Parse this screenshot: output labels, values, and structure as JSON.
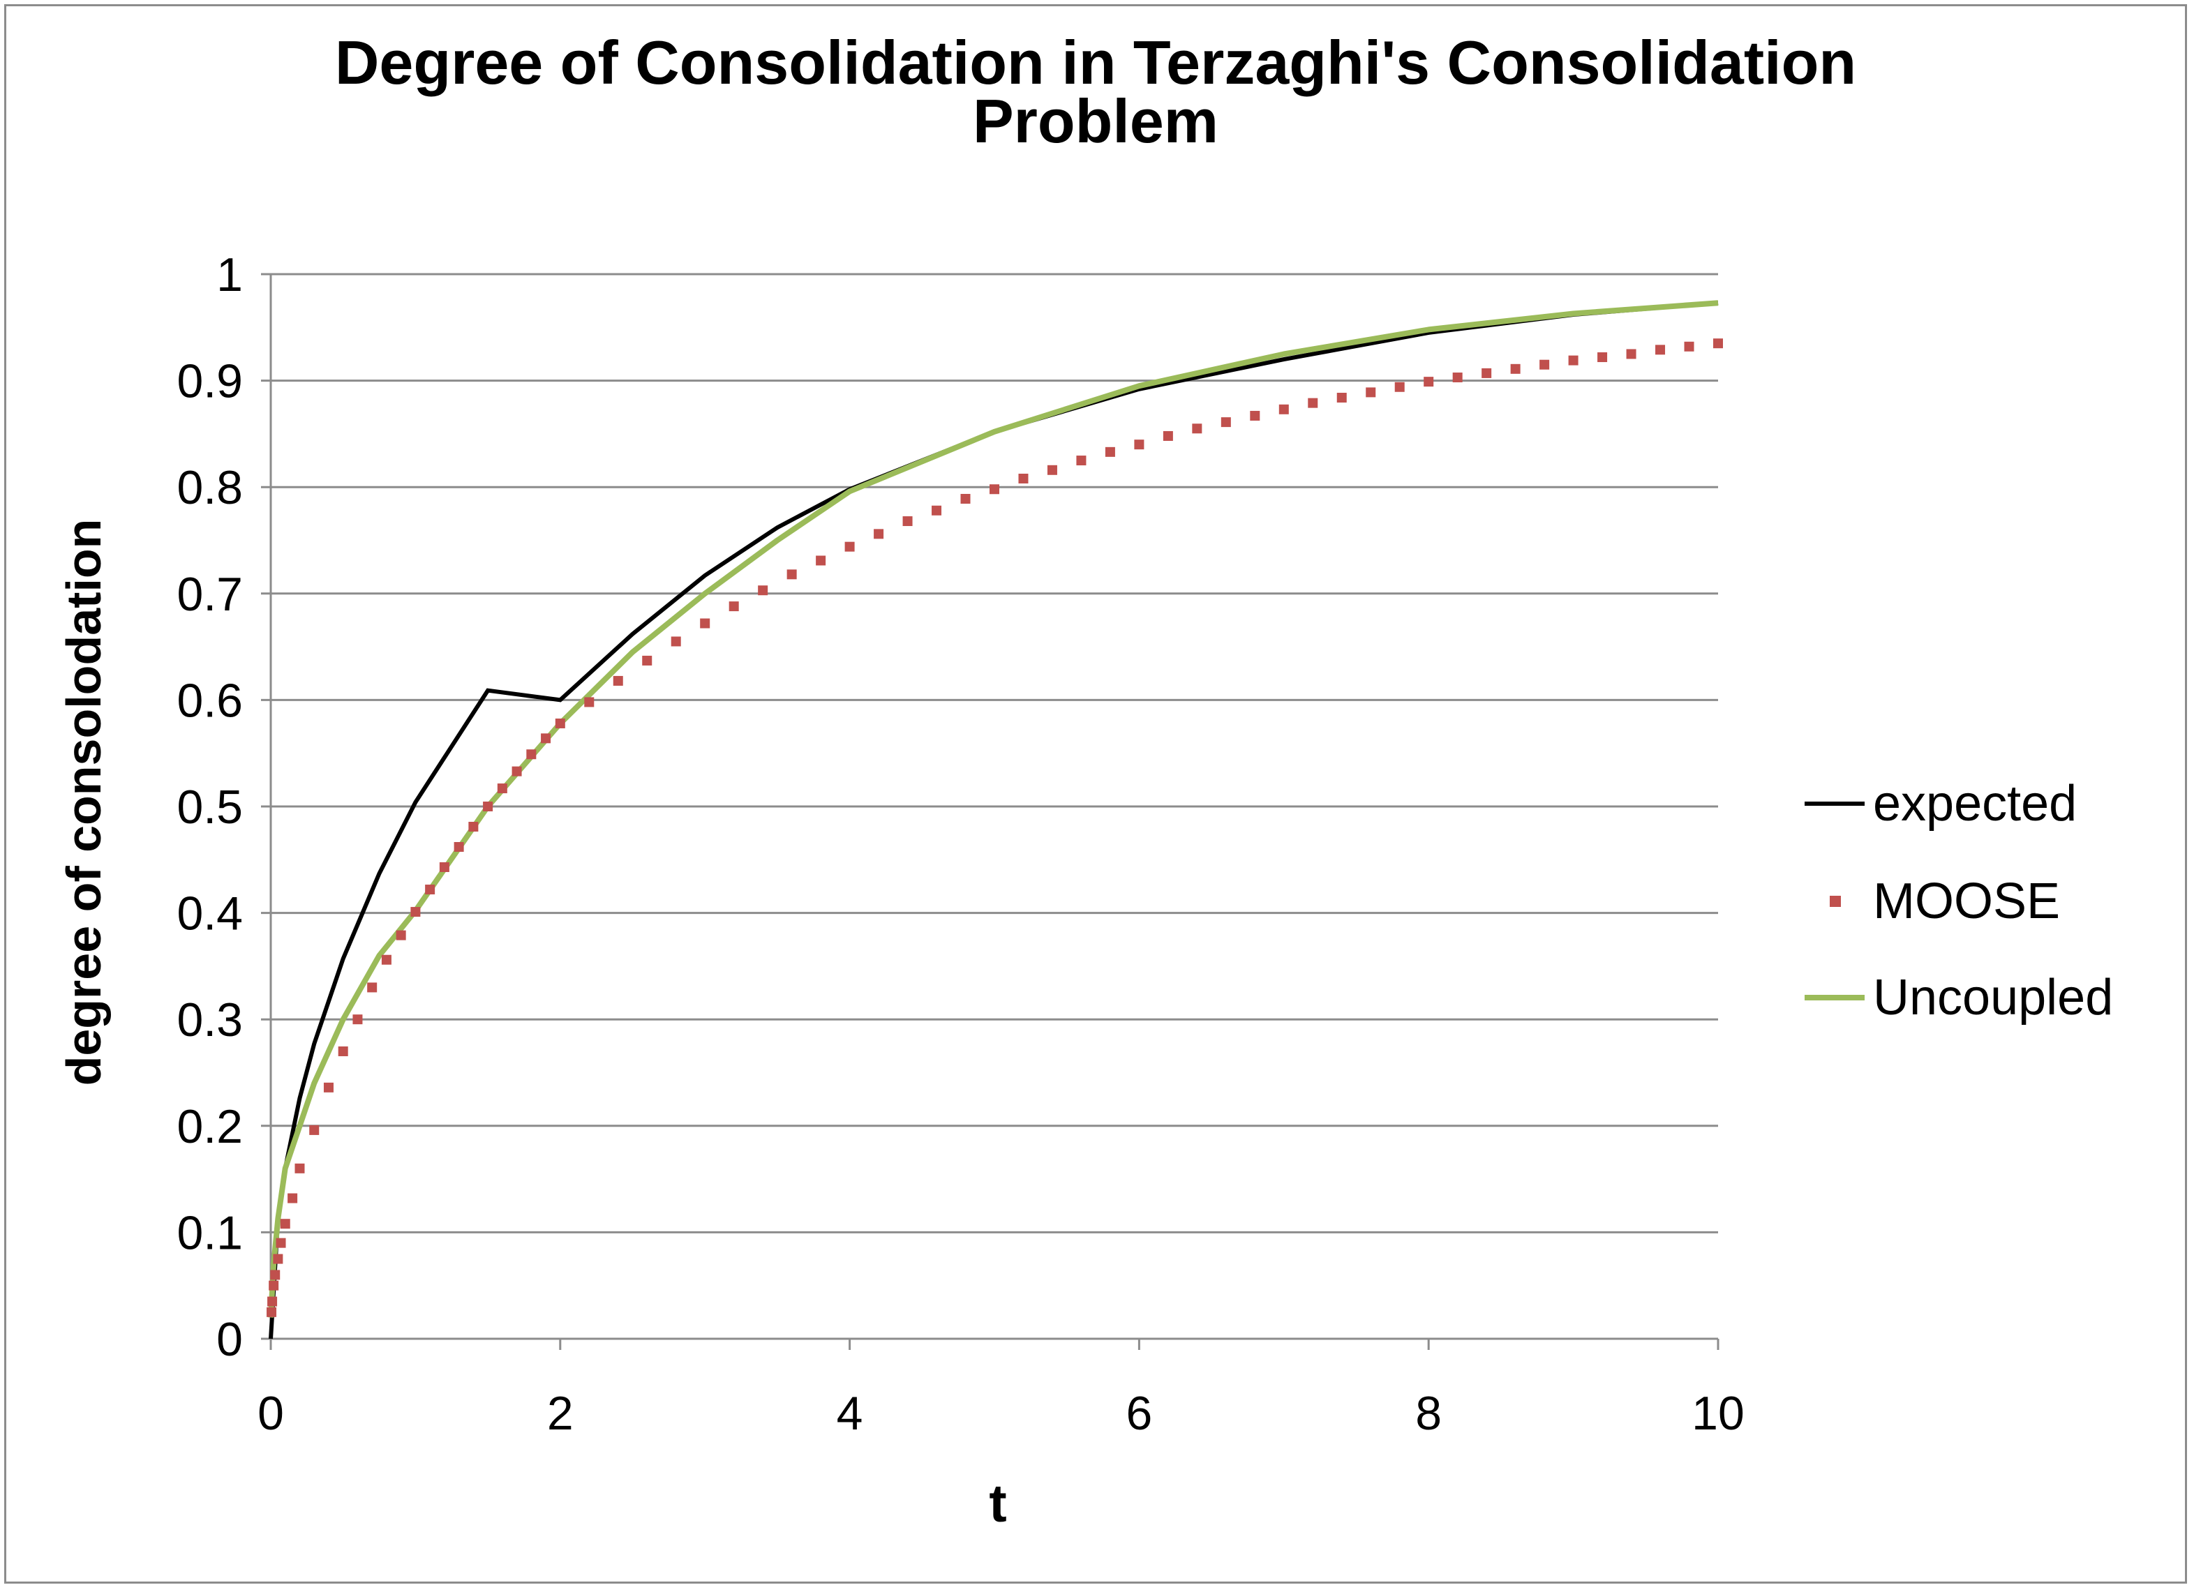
{
  "chart_data": {
    "type": "line",
    "title": "Degree of Consolidation in Terzaghi's Consolidation Problem",
    "title_lines": [
      "Degree of Consolidation in Terzaghi's Consolidation",
      "Problem"
    ],
    "xlabel": "t",
    "ylabel": "degree of consolodation",
    "xlim": [
      0,
      10
    ],
    "ylim": [
      0,
      1
    ],
    "x_ticks": [
      "0",
      "2",
      "4",
      "6",
      "8",
      "10"
    ],
    "y_ticks": [
      "0",
      "0.1",
      "0.2",
      "0.3",
      "0.4",
      "0.5",
      "0.6",
      "0.7",
      "0.8",
      "0.9",
      "1"
    ],
    "grid": "horizontal",
    "legend_position": "right",
    "series": [
      {
        "name": "expected",
        "style": "line",
        "color": "#000000",
        "x": [
          0,
          0.05,
          0.1,
          0.2,
          0.3,
          0.5,
          0.75,
          1,
          1.5,
          2,
          2.5,
          3,
          3.5,
          4,
          5,
          6,
          7,
          8,
          9,
          10
        ],
        "y": [
          0,
          0.113,
          0.16,
          0.226,
          0.277,
          0.357,
          0.437,
          0.504,
          0.609,
          0.6,
          0.662,
          0.717,
          0.762,
          0.798,
          0.852,
          0.892,
          0.92,
          0.945,
          0.962,
          0.973
        ]
      },
      {
        "name": "MOOSE",
        "style": "markers",
        "color": "#c0504d",
        "x": [
          0.005,
          0.01,
          0.02,
          0.03,
          0.05,
          0.07,
          0.1,
          0.15,
          0.2,
          0.3,
          0.4,
          0.5,
          0.6,
          0.7,
          0.8,
          0.9,
          1.0,
          1.1,
          1.2,
          1.3,
          1.4,
          1.5,
          1.6,
          1.7,
          1.8,
          1.9,
          2.0,
          2.2,
          2.4,
          2.6,
          2.8,
          3.0,
          3.2,
          3.4,
          3.6,
          3.8,
          4.0,
          4.2,
          4.4,
          4.6,
          4.8,
          5.0,
          5.2,
          5.4,
          5.6,
          5.8,
          6.0,
          6.2,
          6.4,
          6.6,
          6.8,
          7.0,
          7.2,
          7.4,
          7.6,
          7.8,
          8.0,
          8.2,
          8.4,
          8.6,
          8.8,
          9.0,
          9.2,
          9.4,
          9.6,
          9.8,
          10.0
        ],
        "y": [
          0.025,
          0.035,
          0.05,
          0.06,
          0.075,
          0.09,
          0.108,
          0.132,
          0.16,
          0.196,
          0.236,
          0.27,
          0.3,
          0.33,
          0.356,
          0.379,
          0.401,
          0.422,
          0.443,
          0.462,
          0.481,
          0.5,
          0.517,
          0.533,
          0.549,
          0.564,
          0.578,
          0.598,
          0.618,
          0.637,
          0.655,
          0.672,
          0.688,
          0.703,
          0.718,
          0.731,
          0.744,
          0.756,
          0.768,
          0.778,
          0.789,
          0.798,
          0.808,
          0.816,
          0.825,
          0.833,
          0.84,
          0.848,
          0.855,
          0.861,
          0.867,
          0.873,
          0.879,
          0.884,
          0.889,
          0.894,
          0.899,
          0.903,
          0.907,
          0.911,
          0.915,
          0.919,
          0.922,
          0.925,
          0.929,
          0.932,
          0.935
        ]
      },
      {
        "name": "Uncoupled",
        "style": "line",
        "color": "#9bbb59",
        "x": [
          0.0,
          0.02,
          0.05,
          0.1,
          0.2,
          0.3,
          0.5,
          0.75,
          1,
          1.5,
          2,
          2.5,
          3,
          3.5,
          4,
          5,
          6,
          7,
          8,
          9,
          10
        ],
        "y": [
          0.02,
          0.07,
          0.113,
          0.16,
          0.2,
          0.24,
          0.3,
          0.36,
          0.402,
          0.5,
          0.578,
          0.645,
          0.7,
          0.75,
          0.796,
          0.852,
          0.895,
          0.925,
          0.948,
          0.963,
          0.973
        ]
      }
    ]
  }
}
